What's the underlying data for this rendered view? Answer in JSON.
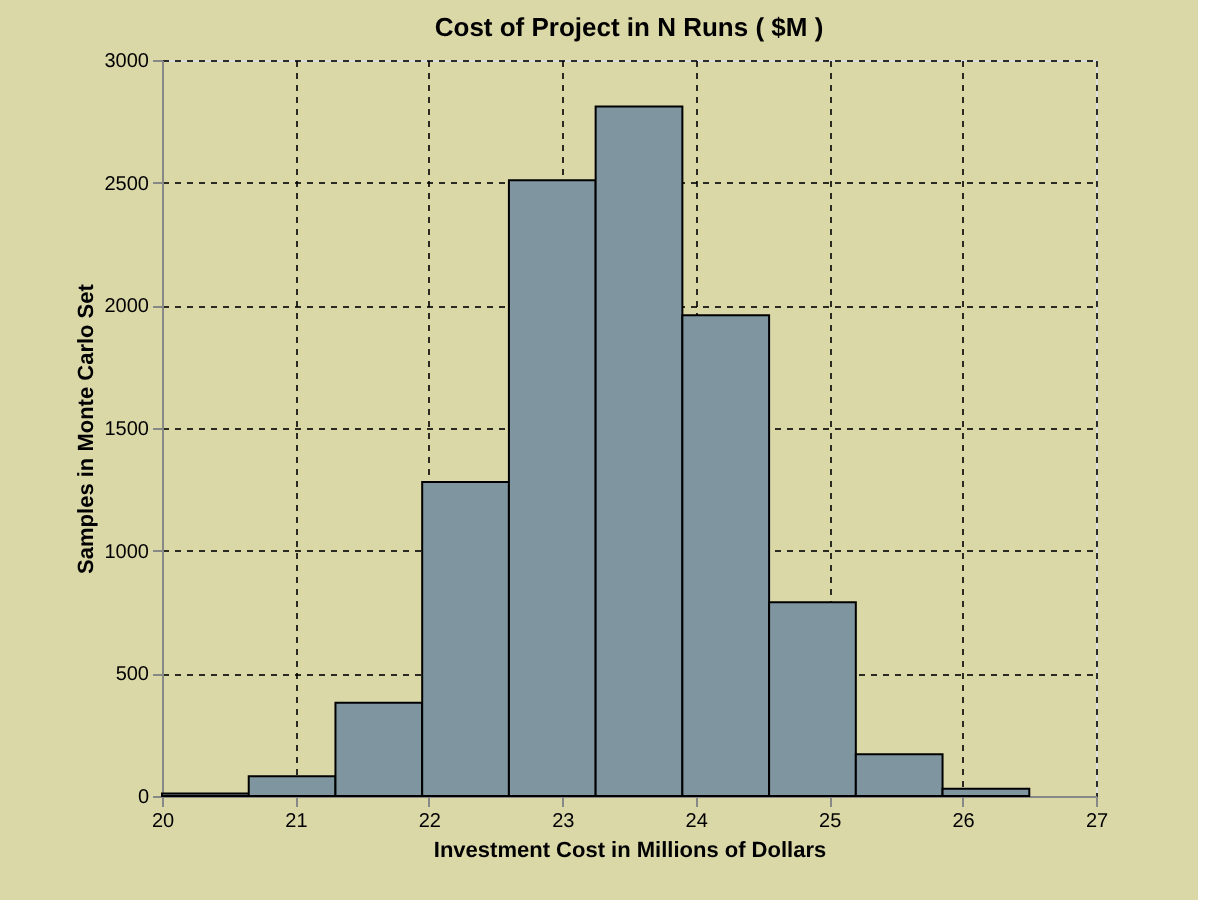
{
  "chart_data": {
    "type": "histogram",
    "title": "Cost of Project in N Runs ( $M )",
    "xlabel": "Investment Cost in Millions of Dollars",
    "ylabel": "Samples in Monte Carlo Set",
    "bins": [
      20.0,
      20.65,
      21.3,
      21.95,
      22.6,
      23.25,
      23.9,
      24.55,
      25.2,
      25.85,
      26.5
    ],
    "values": [
      10,
      80,
      380,
      1280,
      2510,
      2810,
      1960,
      790,
      170,
      30
    ],
    "color": "#7f96a0",
    "xlim": [
      20,
      27
    ],
    "xticks": [
      20,
      21,
      22,
      23,
      24,
      25,
      26,
      27
    ],
    "ylim": [
      0,
      3000
    ],
    "yticks": [
      0,
      500,
      1000,
      1500,
      2000,
      2500,
      3000
    ],
    "grid": true
  }
}
